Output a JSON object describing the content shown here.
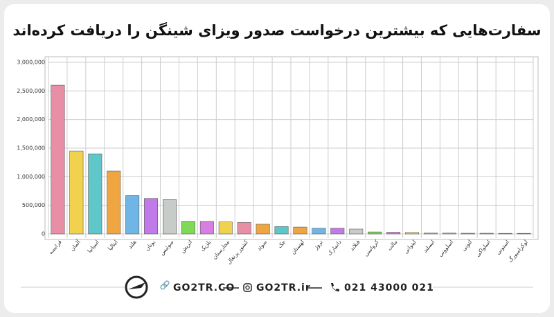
{
  "chart_data": {
    "type": "bar",
    "title": "سفارت‌هایی که بیشترین درخواست صدور ویزای شینگن را دریافت کرده‌اند",
    "categories": [
      "فرانسه",
      "آلمان",
      "اسپانیا",
      "ایتالیا",
      "هلند",
      "یونان",
      "سوئیس",
      "اتریش",
      "بلژیک",
      "مجارستان",
      "کشور پرتغال",
      "سوئد",
      "چک",
      "لهستان",
      "نروژ",
      "دانمارک",
      "فنلاند",
      "کرواسی",
      "مالت",
      "لیتوانی",
      "ایسلند",
      "اسلوونی",
      "لتونی",
      "اسلواکی",
      "استونی",
      "لوکزامبورگ"
    ],
    "values": [
      2600000,
      1450000,
      1400000,
      1100000,
      670000,
      620000,
      600000,
      220000,
      220000,
      210000,
      200000,
      170000,
      130000,
      120000,
      100000,
      100000,
      85000,
      35000,
      30000,
      25000,
      15000,
      15000,
      12000,
      12000,
      10000,
      10000
    ],
    "colors": [
      "#e98fa5",
      "#f0d24f",
      "#5fc7c9",
      "#f0a640",
      "#6fb6e6",
      "#c07be8",
      "#c8ccc8",
      "#7ed957",
      "#d77fe0",
      "#f0d24f",
      "#e98fa5",
      "#f0a640",
      "#5fc7c9",
      "#f0a640",
      "#6fb6e6",
      "#c07be8",
      "#c8ccc8",
      "#7ed957",
      "#d77fe0",
      "#f0d24f",
      "#e98fa5",
      "#f0a640",
      "#5fc7c9",
      "#f0a640",
      "#6fb6e6",
      "#c07be8"
    ],
    "ylim": [
      0,
      3000000
    ],
    "yticks": [
      0,
      {
        "value": 500000,
        "label": "500,000"
      },
      {
        "value": 1000000,
        "label": "1,000,000"
      },
      {
        "value": 1500000,
        "label": "1,500,000"
      },
      {
        "value": 2000000,
        "label": "2,000,000"
      },
      {
        "value": 2500000,
        "label": "2,500,000"
      },
      {
        "value": 3000000,
        "label": "3,000,000"
      }
    ],
    "grid": true
  },
  "footer": {
    "site_1": "GO2TR.CO",
    "site_2": "GO2TR.ir",
    "phone": "021 43000 021"
  }
}
